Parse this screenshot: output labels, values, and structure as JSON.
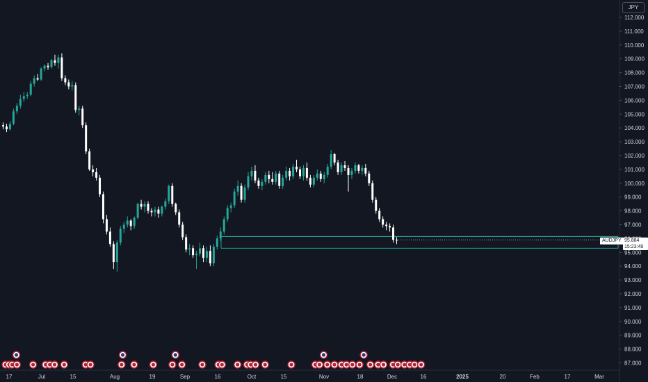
{
  "chart_data": {
    "type": "candlestick",
    "symbol": "AUDJPY",
    "currency": "JPY",
    "last_price": "95.884",
    "countdown": "15:23:49",
    "ylim": [
      86.5,
      113.0
    ],
    "y_ticks": [
      "112.000",
      "111.000",
      "110.000",
      "109.000",
      "108.000",
      "107.000",
      "106.000",
      "105.000",
      "104.000",
      "103.000",
      "102.000",
      "101.000",
      "100.000",
      "99.000",
      "98.000",
      "97.000",
      "96.000",
      "95.000",
      "94.000",
      "93.000",
      "92.000",
      "91.000",
      "90.000",
      "89.000",
      "88.000",
      "87.000"
    ],
    "x_ticks": [
      "17",
      "Jul",
      "15",
      "Aug",
      "19",
      "Sep",
      "16",
      "Oct",
      "15",
      "Nov",
      "18",
      "Dec",
      "16",
      "2025",
      "20",
      "Feb",
      "17",
      "Mar"
    ],
    "up_color": "#26a69a",
    "down_color": "#ffffff",
    "background": "#131722",
    "range_zone": {
      "low": 95.3,
      "high": 96.15,
      "color": "#26a69a"
    },
    "candles": [
      [
        104.2,
        104.4,
        103.9,
        104.1
      ],
      [
        104.1,
        104.3,
        103.7,
        103.9
      ],
      [
        103.9,
        104.5,
        103.8,
        104.3
      ],
      [
        104.3,
        105.4,
        104.2,
        105.2
      ],
      [
        105.2,
        105.8,
        105.0,
        105.6
      ],
      [
        105.6,
        106.4,
        105.4,
        106.1
      ],
      [
        106.1,
        106.6,
        105.9,
        106.3
      ],
      [
        106.3,
        106.6,
        106.1,
        106.4
      ],
      [
        106.4,
        107.4,
        106.3,
        107.2
      ],
      [
        107.2,
        107.8,
        107.0,
        107.6
      ],
      [
        107.6,
        107.9,
        107.4,
        107.5
      ],
      [
        107.5,
        108.4,
        107.4,
        108.3
      ],
      [
        108.3,
        108.6,
        108.1,
        108.5
      ],
      [
        108.5,
        108.7,
        108.2,
        108.4
      ],
      [
        108.4,
        109.0,
        108.3,
        108.9
      ],
      [
        108.9,
        109.3,
        108.5,
        108.7
      ],
      [
        108.7,
        109.3,
        108.3,
        109.1
      ],
      [
        109.1,
        109.4,
        107.4,
        107.6
      ],
      [
        107.6,
        107.8,
        107.1,
        107.3
      ],
      [
        107.3,
        107.5,
        106.8,
        107.0
      ],
      [
        107.0,
        107.4,
        106.7,
        107.1
      ],
      [
        107.1,
        107.3,
        105.1,
        105.3
      ],
      [
        105.3,
        105.6,
        104.9,
        105.4
      ],
      [
        105.4,
        105.6,
        104.0,
        104.2
      ],
      [
        104.2,
        104.4,
        102.1,
        102.3
      ],
      [
        102.3,
        102.5,
        100.9,
        101.0
      ],
      [
        101.0,
        101.3,
        100.5,
        100.8
      ],
      [
        100.8,
        101.1,
        100.2,
        100.4
      ],
      [
        100.4,
        100.6,
        99.0,
        99.2
      ],
      [
        99.2,
        99.4,
        97.1,
        97.4
      ],
      [
        97.4,
        97.7,
        96.3,
        96.5
      ],
      [
        96.5,
        96.8,
        95.4,
        95.6
      ],
      [
        95.6,
        95.8,
        93.8,
        94.3
      ],
      [
        94.3,
        95.9,
        93.6,
        95.7
      ],
      [
        95.7,
        96.9,
        95.5,
        96.7
      ],
      [
        96.7,
        97.2,
        96.4,
        97.0
      ],
      [
        97.0,
        97.6,
        96.8,
        97.3
      ],
      [
        97.3,
        97.4,
        96.6,
        96.9
      ],
      [
        96.9,
        97.6,
        96.7,
        97.5
      ],
      [
        97.5,
        98.6,
        97.4,
        98.5
      ],
      [
        98.5,
        98.8,
        98.1,
        98.3
      ],
      [
        98.3,
        98.7,
        97.9,
        98.5
      ],
      [
        98.5,
        98.7,
        97.8,
        98.0
      ],
      [
        98.0,
        98.2,
        97.6,
        97.9
      ],
      [
        97.9,
        98.3,
        97.6,
        98.1
      ],
      [
        98.1,
        98.3,
        97.5,
        97.8
      ],
      [
        97.8,
        98.4,
        97.6,
        98.3
      ],
      [
        98.3,
        98.9,
        98.1,
        98.7
      ],
      [
        98.7,
        99.9,
        98.5,
        99.8
      ],
      [
        99.8,
        100.0,
        98.3,
        98.5
      ],
      [
        98.5,
        98.6,
        97.7,
        97.9
      ],
      [
        97.9,
        98.1,
        96.8,
        97.0
      ],
      [
        97.0,
        97.2,
        95.9,
        96.1
      ],
      [
        96.1,
        96.3,
        95.0,
        95.2
      ],
      [
        95.2,
        95.6,
        94.8,
        95.3
      ],
      [
        95.3,
        95.5,
        94.6,
        94.8
      ],
      [
        94.8,
        95.1,
        93.8,
        94.9
      ],
      [
        94.9,
        95.7,
        94.7,
        95.3
      ],
      [
        95.3,
        95.5,
        94.3,
        94.6
      ],
      [
        94.6,
        95.4,
        94.3,
        95.1
      ],
      [
        95.1,
        95.5,
        94.0,
        94.2
      ],
      [
        94.2,
        95.6,
        94.0,
        95.4
      ],
      [
        95.4,
        96.2,
        95.2,
        96.0
      ],
      [
        96.0,
        96.8,
        95.8,
        96.5
      ],
      [
        96.5,
        97.6,
        96.3,
        97.4
      ],
      [
        97.4,
        98.4,
        97.2,
        98.2
      ],
      [
        98.2,
        98.6,
        97.9,
        98.4
      ],
      [
        98.4,
        99.6,
        98.2,
        99.4
      ],
      [
        99.4,
        100.2,
        99.1,
        99.8
      ],
      [
        99.8,
        100.0,
        98.6,
        98.8
      ],
      [
        98.8,
        99.9,
        98.6,
        99.7
      ],
      [
        99.7,
        100.8,
        99.5,
        100.5
      ],
      [
        100.5,
        101.2,
        100.2,
        100.9
      ],
      [
        100.9,
        101.3,
        100.0,
        100.2
      ],
      [
        100.2,
        100.4,
        99.6,
        99.8
      ],
      [
        99.8,
        100.3,
        99.5,
        100.1
      ],
      [
        100.1,
        100.8,
        99.9,
        100.6
      ],
      [
        100.6,
        100.9,
        100.0,
        100.3
      ],
      [
        100.3,
        100.8,
        99.9,
        100.1
      ],
      [
        100.1,
        100.9,
        99.9,
        100.7
      ],
      [
        100.7,
        100.9,
        99.6,
        99.8
      ],
      [
        99.8,
        100.6,
        99.6,
        100.4
      ],
      [
        100.4,
        101.2,
        100.2,
        100.9
      ],
      [
        100.9,
        101.1,
        100.2,
        100.5
      ],
      [
        100.5,
        101.4,
        100.3,
        101.2
      ],
      [
        101.2,
        101.7,
        100.8,
        101.0
      ],
      [
        101.0,
        101.2,
        100.3,
        100.5
      ],
      [
        100.5,
        101.3,
        100.2,
        101.1
      ],
      [
        101.1,
        101.5,
        100.2,
        100.4
      ],
      [
        100.4,
        100.6,
        99.7,
        99.9
      ],
      [
        99.9,
        100.6,
        99.7,
        100.4
      ],
      [
        100.4,
        101.0,
        100.2,
        100.7
      ],
      [
        100.7,
        100.9,
        100.1,
        100.3
      ],
      [
        100.3,
        100.8,
        100.0,
        100.6
      ],
      [
        100.6,
        101.4,
        100.4,
        101.2
      ],
      [
        101.2,
        102.4,
        101.0,
        102.1
      ],
      [
        102.1,
        102.2,
        101.3,
        101.5
      ],
      [
        101.5,
        101.7,
        100.6,
        100.8
      ],
      [
        100.8,
        101.5,
        100.6,
        101.3
      ],
      [
        101.3,
        101.6,
        100.9,
        101.1
      ],
      [
        101.1,
        101.3,
        99.4,
        100.6
      ],
      [
        100.6,
        101.1,
        100.3,
        100.9
      ],
      [
        100.9,
        101.5,
        100.7,
        101.3
      ],
      [
        101.3,
        101.4,
        100.7,
        100.9
      ],
      [
        100.9,
        101.3,
        100.6,
        101.1
      ],
      [
        101.1,
        101.4,
        100.5,
        100.7
      ],
      [
        100.7,
        100.9,
        99.8,
        100.0
      ],
      [
        100.0,
        100.2,
        98.6,
        98.8
      ],
      [
        98.8,
        99.0,
        97.8,
        98.0
      ],
      [
        98.0,
        98.2,
        97.2,
        97.4
      ],
      [
        97.4,
        97.6,
        96.8,
        97.0
      ],
      [
        97.0,
        97.2,
        96.6,
        96.9
      ],
      [
        96.9,
        97.1,
        96.5,
        96.8
      ],
      [
        96.8,
        97.0,
        95.7,
        95.9
      ],
      [
        95.9,
        96.1,
        95.6,
        95.884
      ]
    ],
    "events": [
      {
        "pos": 0.0,
        "row": 0
      },
      {
        "pos": 0.6,
        "row": 0
      },
      {
        "pos": 1.1,
        "row": 0
      },
      {
        "pos": 1.9,
        "row": 0
      },
      {
        "pos": 1.8,
        "row": 1
      },
      {
        "pos": 4.6,
        "row": 0
      },
      {
        "pos": 6.7,
        "row": 0
      },
      {
        "pos": 7.4,
        "row": 0
      },
      {
        "pos": 8.2,
        "row": 0
      },
      {
        "pos": 9.8,
        "row": 0
      },
      {
        "pos": 13.4,
        "row": 0
      },
      {
        "pos": 14.2,
        "row": 0
      },
      {
        "pos": 19.4,
        "row": 0
      },
      {
        "pos": 19.6,
        "row": 1
      },
      {
        "pos": 21.5,
        "row": 0
      },
      {
        "pos": 24.7,
        "row": 0
      },
      {
        "pos": 27.9,
        "row": 0
      },
      {
        "pos": 28.4,
        "row": 1
      },
      {
        "pos": 29.5,
        "row": 0
      },
      {
        "pos": 32.9,
        "row": 0
      },
      {
        "pos": 35.6,
        "row": 0
      },
      {
        "pos": 36.2,
        "row": 0
      },
      {
        "pos": 38.8,
        "row": 0
      },
      {
        "pos": 40.4,
        "row": 0
      },
      {
        "pos": 41.0,
        "row": 0
      },
      {
        "pos": 41.8,
        "row": 0
      },
      {
        "pos": 43.4,
        "row": 0
      },
      {
        "pos": 47.8,
        "row": 0
      },
      {
        "pos": 51.8,
        "row": 0
      },
      {
        "pos": 52.5,
        "row": 0
      },
      {
        "pos": 53.2,
        "row": 1
      },
      {
        "pos": 53.8,
        "row": 0
      },
      {
        "pos": 55.0,
        "row": 0
      },
      {
        "pos": 56.2,
        "row": 0
      },
      {
        "pos": 57.0,
        "row": 0
      },
      {
        "pos": 58.0,
        "row": 0
      },
      {
        "pos": 59.2,
        "row": 0
      },
      {
        "pos": 59.9,
        "row": 1
      },
      {
        "pos": 61.0,
        "row": 0
      },
      {
        "pos": 62.3,
        "row": 0
      },
      {
        "pos": 63.2,
        "row": 0
      },
      {
        "pos": 64.8,
        "row": 0
      },
      {
        "pos": 65.6,
        "row": 0
      },
      {
        "pos": 66.7,
        "row": 0
      },
      {
        "pos": 67.6,
        "row": 0
      },
      {
        "pos": 68.4,
        "row": 0
      },
      {
        "pos": 69.5,
        "row": 0
      }
    ]
  }
}
